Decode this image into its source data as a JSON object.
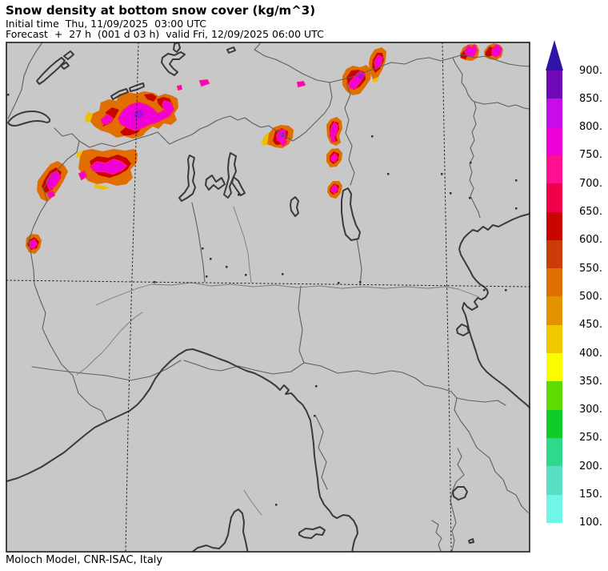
{
  "header": {
    "title": "Snow density at bottom snow cover (kg/m^3)",
    "initial_line": "Initial time  Thu, 11/09/2025  03:00 UTC",
    "forecast_line": "Forecast  +  27 h  (001 d 03 h)  valid Fri, 12/09/2025 06:00 UTC"
  },
  "footer": {
    "credit": "Moloch Model, CNR-ISAC, Italy"
  },
  "colorbar": {
    "units": "kg/m^3",
    "arrow_color": "#3114a6",
    "ticks": [
      "900.",
      "850.",
      "800.",
      "750.",
      "700.",
      "650.",
      "600.",
      "550.",
      "500.",
      "450.",
      "400.",
      "350.",
      "300.",
      "250.",
      "200.",
      "150.",
      "100."
    ],
    "segments": [
      {
        "range": "850-900",
        "color": "#7009b8"
      },
      {
        "range": "800-850",
        "color": "#c80ce8"
      },
      {
        "range": "750-800",
        "color": "#f000d8"
      },
      {
        "range": "700-750",
        "color": "#ff1090"
      },
      {
        "range": "650-700",
        "color": "#f00048"
      },
      {
        "range": "600-650",
        "color": "#c90500"
      },
      {
        "range": "550-600",
        "color": "#cc3c08"
      },
      {
        "range": "500-550",
        "color": "#e06e00"
      },
      {
        "range": "450-500",
        "color": "#e29400"
      },
      {
        "range": "400-450",
        "color": "#f0c800"
      },
      {
        "range": "350-400",
        "color": "#fcfc00"
      },
      {
        "range": "300-350",
        "color": "#5cdc00"
      },
      {
        "range": "250-300",
        "color": "#10cc28"
      },
      {
        "range": "200-250",
        "color": "#30d88c"
      },
      {
        "range": "150-200",
        "color": "#58e0c4"
      },
      {
        "range": "100-150",
        "color": "#70f6e6"
      }
    ]
  },
  "map": {
    "land_color": "#c8c8c8",
    "coast_color": "#3a3a3a",
    "border_color": "#5f5f5f",
    "river_color": "#7a7a7a",
    "grid_color": "#1c1c1c",
    "frame_color": "#1c1c1c",
    "town_color": "#333333",
    "blob_colors": {
      "gold": "#eec000",
      "orange": "#e06e00",
      "vermilion": "#cc3c08",
      "red": "#c90500",
      "pink": "#ff1090",
      "magenta": "#ee00d8",
      "violet": "#b00ce0"
    }
  }
}
